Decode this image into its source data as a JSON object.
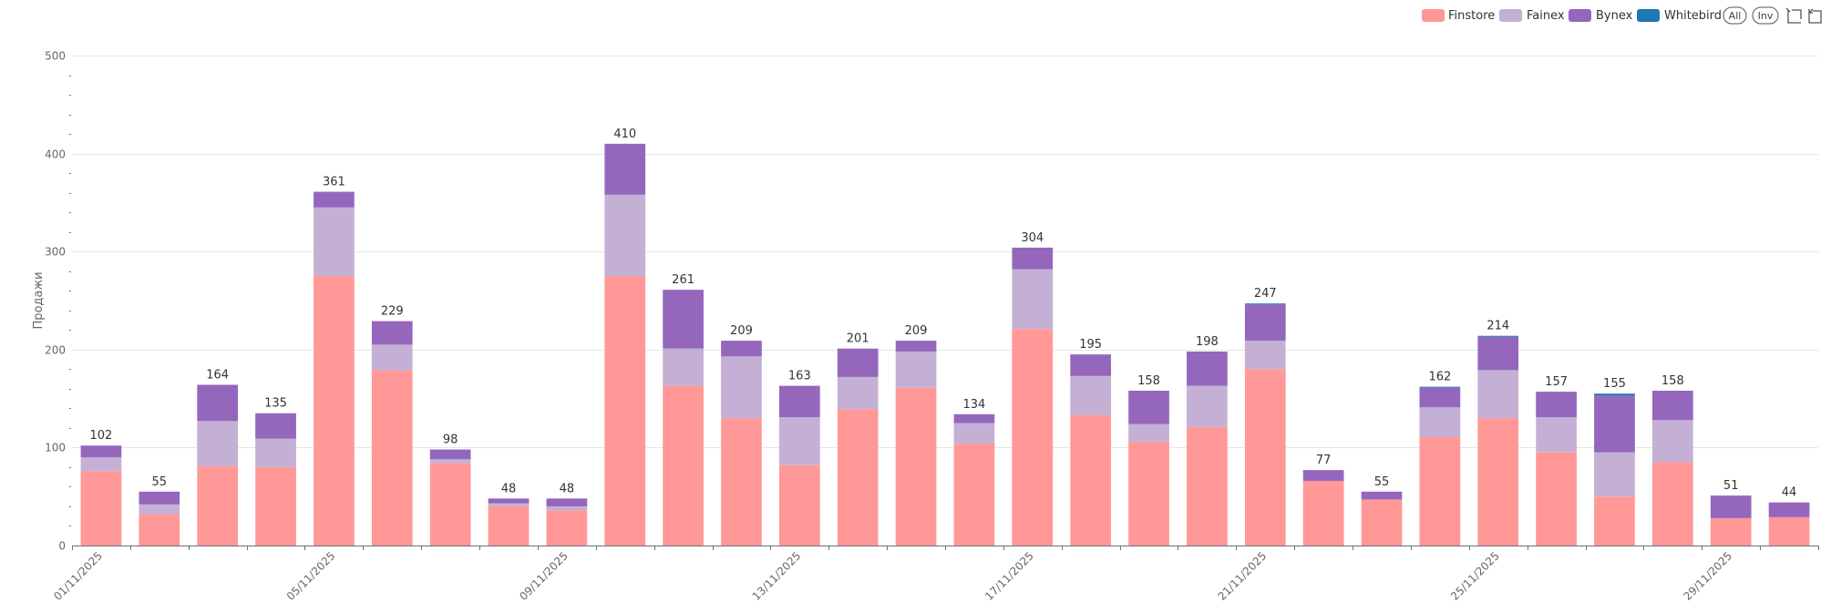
{
  "chart_data": {
    "type": "bar",
    "stacked": true,
    "ylabel": "Продажи",
    "xlabel": "",
    "ylim": [
      0,
      500
    ],
    "yticks": [
      0,
      100,
      200,
      300,
      400,
      500
    ],
    "grid": true,
    "legend_position": "top-right",
    "categories": [
      "01/11/2025",
      "02/11/2025",
      "03/11/2025",
      "04/11/2025",
      "05/11/2025",
      "06/11/2025",
      "07/11/2025",
      "08/11/2025",
      "09/11/2025",
      "10/11/2025",
      "11/11/2025",
      "12/11/2025",
      "13/11/2025",
      "14/11/2025",
      "15/11/2025",
      "16/11/2025",
      "17/11/2025",
      "18/11/2025",
      "19/11/2025",
      "20/11/2025",
      "21/11/2025",
      "22/11/2025",
      "23/11/2025",
      "24/11/2025",
      "25/11/2025",
      "26/11/2025",
      "27/11/2025",
      "28/11/2025",
      "29/11/2025",
      "30/11/2025"
    ],
    "visible_tick_labels": [
      "01/11/2025",
      "05/11/2025",
      "09/11/2025",
      "13/11/2025",
      "17/11/2025",
      "21/11/2025",
      "25/11/2025",
      "29/11/2025"
    ],
    "series": [
      {
        "name": "Finstore",
        "color": "#ff9896",
        "values": [
          76,
          32,
          81,
          80,
          275,
          179,
          84,
          40,
          36,
          275,
          163,
          130,
          82,
          139,
          161,
          104,
          221,
          133,
          106,
          121,
          180,
          66,
          47,
          111,
          130,
          95,
          50,
          85,
          28,
          29
        ]
      },
      {
        "name": "Fainex",
        "color": "#c5b0d5",
        "values": [
          14,
          10,
          46,
          29,
          70,
          26,
          4,
          3,
          4,
          83,
          38,
          63,
          49,
          33,
          37,
          21,
          61,
          40,
          18,
          42,
          29,
          0,
          0,
          30,
          49,
          36,
          45,
          43,
          0,
          0
        ]
      },
      {
        "name": "Bynex",
        "color": "#9467bd",
        "values": [
          12,
          13,
          37,
          26,
          16,
          24,
          10,
          5,
          8,
          52,
          60,
          16,
          32,
          29,
          11,
          9,
          22,
          22,
          34,
          35,
          37,
          11,
          8,
          20,
          34,
          26,
          58,
          30,
          23,
          15
        ]
      },
      {
        "name": "Whitebird",
        "color": "#1f77b4",
        "values": [
          0,
          0,
          0,
          0,
          0,
          0,
          0,
          0,
          0,
          0,
          0,
          0,
          0,
          0,
          0,
          0,
          0,
          0,
          0,
          0,
          1,
          0,
          0,
          1,
          1,
          0,
          2,
          0,
          0,
          0
        ]
      }
    ],
    "totals": [
      102,
      55,
      164,
      135,
      361,
      229,
      98,
      48,
      48,
      410,
      261,
      209,
      163,
      201,
      209,
      134,
      304,
      195,
      158,
      198,
      247,
      77,
      55,
      162,
      214,
      157,
      155,
      158,
      51,
      44
    ]
  },
  "legend_controls": {
    "all_label": "All",
    "inv_label": "Inv"
  }
}
